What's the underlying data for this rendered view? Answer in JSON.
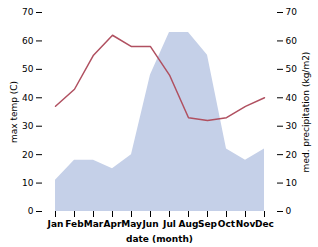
{
  "chart_data": {
    "type": "line",
    "xlabel": "date (month)",
    "ylabel": "max temp (C)",
    "y2label": "med. precipitation (kg/m2)",
    "categories": [
      "Jan",
      "Feb",
      "Mar",
      "Apr",
      "May",
      "Jun",
      "Jul",
      "Aug",
      "Sep",
      "Oct",
      "Nov",
      "Dec"
    ],
    "series": [
      {
        "type": "area",
        "color": "#c5d0e8",
        "axis": "y2",
        "values": [
          11,
          18,
          18,
          15,
          20,
          48,
          63,
          63,
          55,
          22,
          18,
          22
        ]
      },
      {
        "type": "line",
        "color": "#b05060",
        "values": [
          37,
          43,
          55,
          62,
          58,
          58,
          48,
          33,
          32,
          33,
          37,
          40
        ]
      }
    ],
    "ylim": [
      0,
      70
    ],
    "yticks": [
      0,
      10,
      20,
      30,
      40,
      50,
      60,
      70
    ],
    "y2lim": [
      0,
      70
    ],
    "y2ticks": [
      0,
      10,
      20,
      30,
      40,
      50,
      60,
      70
    ],
    "grid": false
  }
}
